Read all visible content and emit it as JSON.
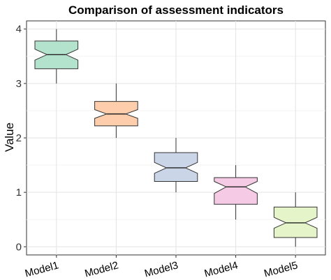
{
  "chart_data": {
    "type": "boxplot",
    "title": "Comparison of assessment indicators",
    "xlabel": "",
    "ylabel": "Value",
    "ylim": [
      -0.15,
      4.15
    ],
    "yticks": [
      0,
      1,
      2,
      3,
      4
    ],
    "grid": true,
    "notched": true,
    "categories": [
      "Model1",
      "Model2",
      "Model3",
      "Model4",
      "Model5"
    ],
    "boxes": [
      {
        "whisker_low": 3.0,
        "q1": 3.27,
        "median": 3.53,
        "q3": 3.78,
        "whisker_high": 4.0,
        "notch_low": 3.43,
        "notch_high": 3.63,
        "color": "#b3e2cd"
      },
      {
        "whisker_low": 2.0,
        "q1": 2.22,
        "median": 2.44,
        "q3": 2.67,
        "whisker_high": 3.0,
        "notch_low": 2.36,
        "notch_high": 2.52,
        "color": "#fdcdac"
      },
      {
        "whisker_low": 1.0,
        "q1": 1.2,
        "median": 1.45,
        "q3": 1.73,
        "whisker_high": 2.0,
        "notch_low": 1.35,
        "notch_high": 1.55,
        "color": "#cbd5e8"
      },
      {
        "whisker_low": 0.5,
        "q1": 0.78,
        "median": 1.1,
        "q3": 1.27,
        "whisker_high": 1.5,
        "notch_low": 0.98,
        "notch_high": 1.2,
        "color": "#f4cae4"
      },
      {
        "whisker_low": 0.0,
        "q1": 0.17,
        "median": 0.44,
        "q3": 0.73,
        "whisker_high": 1.0,
        "notch_low": 0.34,
        "notch_high": 0.54,
        "color": "#e6f5c9"
      }
    ]
  }
}
